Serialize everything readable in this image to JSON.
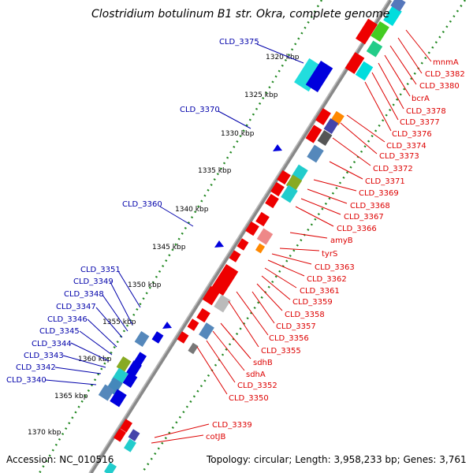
{
  "title": "Clostridium botulinum B1 str. Okra, complete genome",
  "footer": {
    "accession": "Accession: NC_010516",
    "topology": "Topology: circular; Length: 3,958,233 bp; Genes: 3,761"
  },
  "colors": {
    "forward_label": "#0000aa",
    "reverse_label": "#dd0000",
    "backbone": "#888888",
    "tick": "#228822"
  },
  "kbp_ticks": [
    "1320 kbp",
    "1325 kbp",
    "1330 kbp",
    "1335 kbp",
    "1340 kbp",
    "1345 kbp",
    "1350 kbp",
    "1355 kbp",
    "1360 kbp",
    "1365 kbp",
    "1370 kbp"
  ],
  "forward_labels": [
    "CLD_3375",
    "CLD_3370",
    "CLD_3360",
    "CLD_3351",
    "CLD_3349",
    "CLD_3348",
    "CLD_3347",
    "CLD_3346",
    "CLD_3345",
    "CLD_3344",
    "CLD_3343",
    "CLD_3342",
    "CLD_3340"
  ],
  "reverse_labels": [
    "mnmA",
    "CLD_3382",
    "CLD_3380",
    "bcrA",
    "CLD_3378",
    "CLD_3377",
    "CLD_3376",
    "CLD_3374",
    "CLD_3373",
    "CLD_3372",
    "CLD_3371",
    "CLD_3369",
    "CLD_3368",
    "CLD_3367",
    "CLD_3366",
    "amyB",
    "tyrS",
    "CLD_3363",
    "CLD_3362",
    "CLD_3361",
    "CLD_3359",
    "CLD_3358",
    "CLD_3357",
    "CLD_3356",
    "CLD_3355",
    "sdhB",
    "sdhA",
    "CLD_3352",
    "CLD_3350",
    "CLD_3339",
    "cotJB"
  ]
}
